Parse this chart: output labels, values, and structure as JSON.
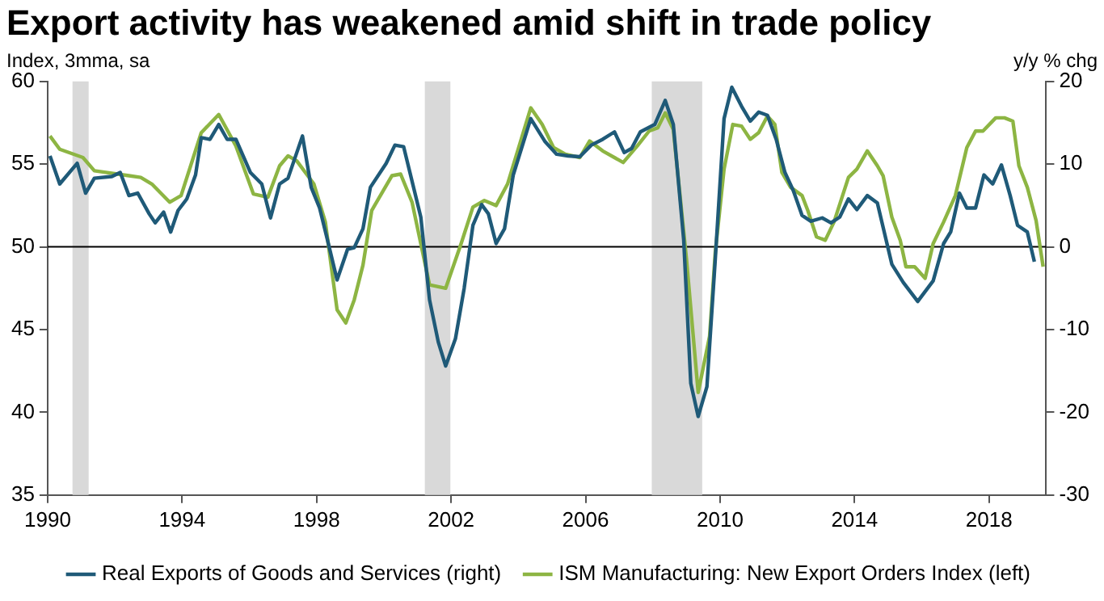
{
  "chart_data": {
    "type": "line",
    "title": "Export activity has weakened amid shift in trade policy",
    "ylabel": "Index, 3mma, sa",
    "y2label": "y/y % chg",
    "xlim": [
      1990,
      2019.7
    ],
    "xticks": [
      1990,
      1994,
      1998,
      2002,
      2006,
      2010,
      2014,
      2018
    ],
    "ylim": [
      35,
      60
    ],
    "yticks": [
      35,
      40,
      45,
      50,
      55,
      60
    ],
    "y2lim": [
      -30,
      20
    ],
    "y2ticks": [
      -30,
      -20,
      -10,
      0,
      10,
      20
    ],
    "grid": false,
    "legend": "bottom",
    "marker": "none",
    "line_style": "solid",
    "ref_lines": [
      {
        "axis": "y",
        "value": 50,
        "color": "#000000"
      }
    ],
    "bands": [
      {
        "axis": "x",
        "from": 1990.74,
        "to": 1991.22,
        "color": "#d9d9d9"
      },
      {
        "axis": "x",
        "from": 2001.22,
        "to": 2001.98,
        "color": "#d9d9d9"
      },
      {
        "axis": "x",
        "from": 2007.97,
        "to": 2009.47,
        "color": "#d9d9d9"
      }
    ],
    "series": [
      {
        "name": "Real Exports of Goods and Services (right)",
        "color": "#1f5a78",
        "axis": "y2",
        "x": [
          1990.07,
          1990.36,
          1990.88,
          1991.13,
          1991.39,
          1991.91,
          1992.16,
          1992.42,
          1992.68,
          1993.02,
          1993.2,
          1993.45,
          1993.66,
          1993.88,
          1994.14,
          1994.4,
          1994.57,
          1994.83,
          1995.09,
          1995.34,
          1995.6,
          1996.03,
          1996.37,
          1996.63,
          1996.9,
          1997.15,
          1997.58,
          1997.84,
          1998.09,
          1998.35,
          1998.61,
          1998.92,
          1999.12,
          1999.38,
          1999.6,
          2000.07,
          2000.33,
          2000.59,
          2001.1,
          2001.36,
          2001.62,
          2001.84,
          2002.13,
          2002.39,
          2002.65,
          2002.91,
          2003.11,
          2003.34,
          2003.59,
          2003.85,
          2004.37,
          2004.8,
          2005.14,
          2005.48,
          2005.83,
          2006.17,
          2006.51,
          2006.86,
          2007.15,
          2007.37,
          2007.63,
          2008.06,
          2008.37,
          2008.61,
          2008.92,
          2009.13,
          2009.35,
          2009.61,
          2009.86,
          2010.12,
          2010.35,
          2010.64,
          2010.9,
          2011.15,
          2011.41,
          2011.67,
          2011.93,
          2012.18,
          2012.44,
          2012.7,
          2013.04,
          2013.3,
          2013.56,
          2013.82,
          2014.07,
          2014.38,
          2014.68,
          2015.11,
          2015.45,
          2015.88,
          2016.34,
          2016.65,
          2016.86,
          2017.12,
          2017.34,
          2017.6,
          2017.85,
          2018.11,
          2018.37,
          2018.63,
          2018.85,
          2019.14,
          2019.35
        ],
        "values": [
          11.0,
          7.6,
          10.1,
          6.5,
          8.3,
          8.5,
          9.0,
          6.2,
          6.5,
          4.0,
          2.9,
          4.2,
          1.8,
          4.4,
          5.8,
          8.7,
          13.2,
          13.0,
          14.8,
          13.0,
          13.0,
          9.0,
          7.6,
          3.5,
          7.6,
          8.3,
          13.4,
          7.2,
          4.7,
          0.4,
          -4.0,
          -0.3,
          -0.1,
          2.2,
          7.2,
          10.1,
          12.3,
          12.1,
          3.6,
          -6.4,
          -11.5,
          -14.4,
          -11.1,
          -5.0,
          2.6,
          5.1,
          4.0,
          0.4,
          2.2,
          8.7,
          15.5,
          12.7,
          11.2,
          11.0,
          10.9,
          12.3,
          13.0,
          13.9,
          11.4,
          11.9,
          13.9,
          14.8,
          17.7,
          14.8,
          0.8,
          -16.5,
          -20.5,
          -16.9,
          -1.4,
          15.5,
          19.3,
          17.0,
          15.2,
          16.3,
          15.9,
          13.0,
          9.0,
          6.8,
          3.8,
          3.1,
          3.5,
          2.9,
          3.6,
          5.8,
          4.5,
          6.2,
          5.3,
          -2.1,
          -4.3,
          -6.6,
          -4.1,
          0.4,
          1.8,
          6.5,
          4.7,
          4.7,
          8.7,
          7.6,
          9.9,
          6.2,
          2.6,
          1.8,
          -1.8
        ]
      },
      {
        "name": "ISM Manufacturing: New Export Orders Index (left)",
        "color": "#8db543",
        "axis": "y",
        "x": [
          1990.07,
          1990.36,
          1991.05,
          1991.39,
          1992.42,
          1992.77,
          1993.1,
          1993.63,
          1993.97,
          1994.57,
          1995.09,
          1995.6,
          1996.12,
          1996.55,
          1996.9,
          1997.15,
          1997.41,
          1997.92,
          1998.26,
          1998.61,
          1998.87,
          1999.12,
          1999.38,
          1999.64,
          2000.24,
          2000.5,
          2000.84,
          2001.36,
          2001.84,
          2002.3,
          2002.65,
          2002.99,
          2003.34,
          2003.68,
          2004.37,
          2004.71,
          2005.05,
          2005.4,
          2005.83,
          2006.12,
          2006.51,
          2007.12,
          2007.54,
          2007.89,
          2008.15,
          2008.37,
          2008.61,
          2009.0,
          2009.35,
          2009.69,
          2009.86,
          2010.12,
          2010.38,
          2010.64,
          2010.9,
          2011.15,
          2011.41,
          2011.63,
          2011.84,
          2012.1,
          2012.44,
          2012.61,
          2012.87,
          2013.13,
          2013.39,
          2013.82,
          2014.07,
          2014.38,
          2014.68,
          2014.85,
          2015.11,
          2015.36,
          2015.53,
          2015.79,
          2016.1,
          2016.34,
          2016.65,
          2017.0,
          2017.34,
          2017.6,
          2017.82,
          2018.2,
          2018.46,
          2018.71,
          2018.89,
          2019.14,
          2019.4,
          2019.61
        ],
        "values": [
          56.7,
          55.9,
          55.4,
          54.6,
          54.3,
          54.2,
          53.8,
          52.7,
          53.1,
          56.9,
          58.0,
          56.1,
          53.2,
          53.0,
          54.9,
          55.5,
          55.2,
          53.8,
          51.5,
          46.2,
          45.4,
          46.8,
          48.9,
          52.2,
          54.3,
          54.4,
          52.7,
          47.7,
          47.5,
          50.2,
          52.4,
          52.8,
          52.5,
          53.8,
          58.4,
          57.4,
          56.0,
          55.6,
          55.4,
          56.4,
          55.8,
          55.1,
          56.1,
          57.0,
          57.2,
          58.1,
          57.1,
          49.3,
          41.2,
          44.6,
          49.7,
          54.7,
          57.4,
          57.3,
          56.5,
          56.9,
          57.9,
          57.4,
          54.5,
          53.6,
          53.1,
          52.2,
          50.6,
          50.4,
          51.5,
          54.2,
          54.7,
          55.8,
          54.9,
          54.3,
          51.8,
          50.4,
          48.8,
          48.8,
          48.1,
          50.2,
          51.5,
          53.1,
          56.0,
          57.0,
          57.0,
          57.8,
          57.8,
          57.6,
          54.9,
          53.6,
          51.6,
          48.8
        ]
      }
    ]
  }
}
